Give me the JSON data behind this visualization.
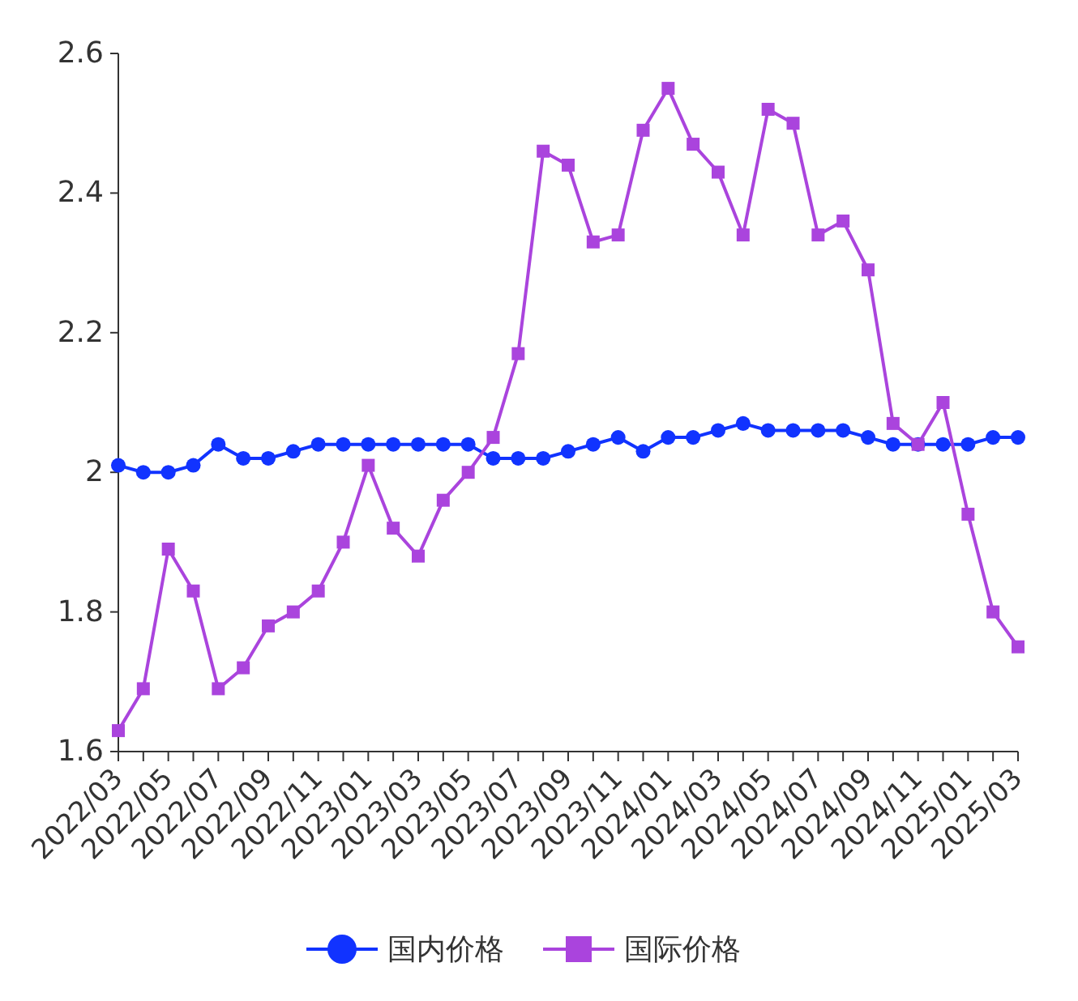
{
  "chart_data": {
    "type": "line",
    "categories": [
      "2022/03",
      null,
      "2022/05",
      null,
      "2022/07",
      null,
      "2022/09",
      null,
      "2022/11",
      null,
      "2023/01",
      null,
      "2023/03",
      null,
      "2023/05",
      null,
      "2023/07",
      null,
      "2023/09",
      null,
      "2023/11",
      null,
      "2024/01",
      null,
      "2024/03",
      null,
      "2024/05",
      null,
      "2024/07",
      null,
      "2024/09",
      null,
      "2024/11",
      null,
      "2025/01",
      null,
      "2025/03"
    ],
    "series": [
      {
        "name": "国内价格",
        "color": "#1133ff",
        "marker": "circle",
        "values": [
          2.01,
          2.0,
          2.0,
          2.01,
          2.04,
          2.02,
          2.02,
          2.03,
          2.04,
          2.04,
          2.04,
          2.04,
          2.04,
          2.04,
          2.04,
          2.02,
          2.02,
          2.02,
          2.03,
          2.04,
          2.05,
          2.03,
          2.05,
          2.05,
          2.06,
          2.07,
          2.06,
          2.06,
          2.06,
          2.06,
          2.05,
          2.04,
          2.04,
          2.04,
          2.04,
          2.05,
          2.05
        ]
      },
      {
        "name": "国际价格",
        "color": "#aa44dd",
        "marker": "square",
        "values": [
          1.63,
          1.69,
          1.89,
          1.83,
          1.69,
          1.72,
          1.78,
          1.8,
          1.83,
          1.9,
          2.01,
          1.92,
          1.88,
          1.96,
          2.0,
          2.05,
          2.17,
          2.46,
          2.44,
          2.33,
          2.34,
          2.49,
          2.55,
          2.47,
          2.43,
          2.34,
          2.52,
          2.5,
          2.34,
          2.36,
          2.29,
          2.07,
          2.04,
          2.1,
          1.94,
          1.8,
          1.75
        ]
      }
    ],
    "ylim": [
      1.6,
      2.6
    ],
    "yticks": [
      1.6,
      1.8,
      2,
      2.2,
      2.4,
      2.6
    ],
    "grid": false,
    "legend": "bottom"
  }
}
